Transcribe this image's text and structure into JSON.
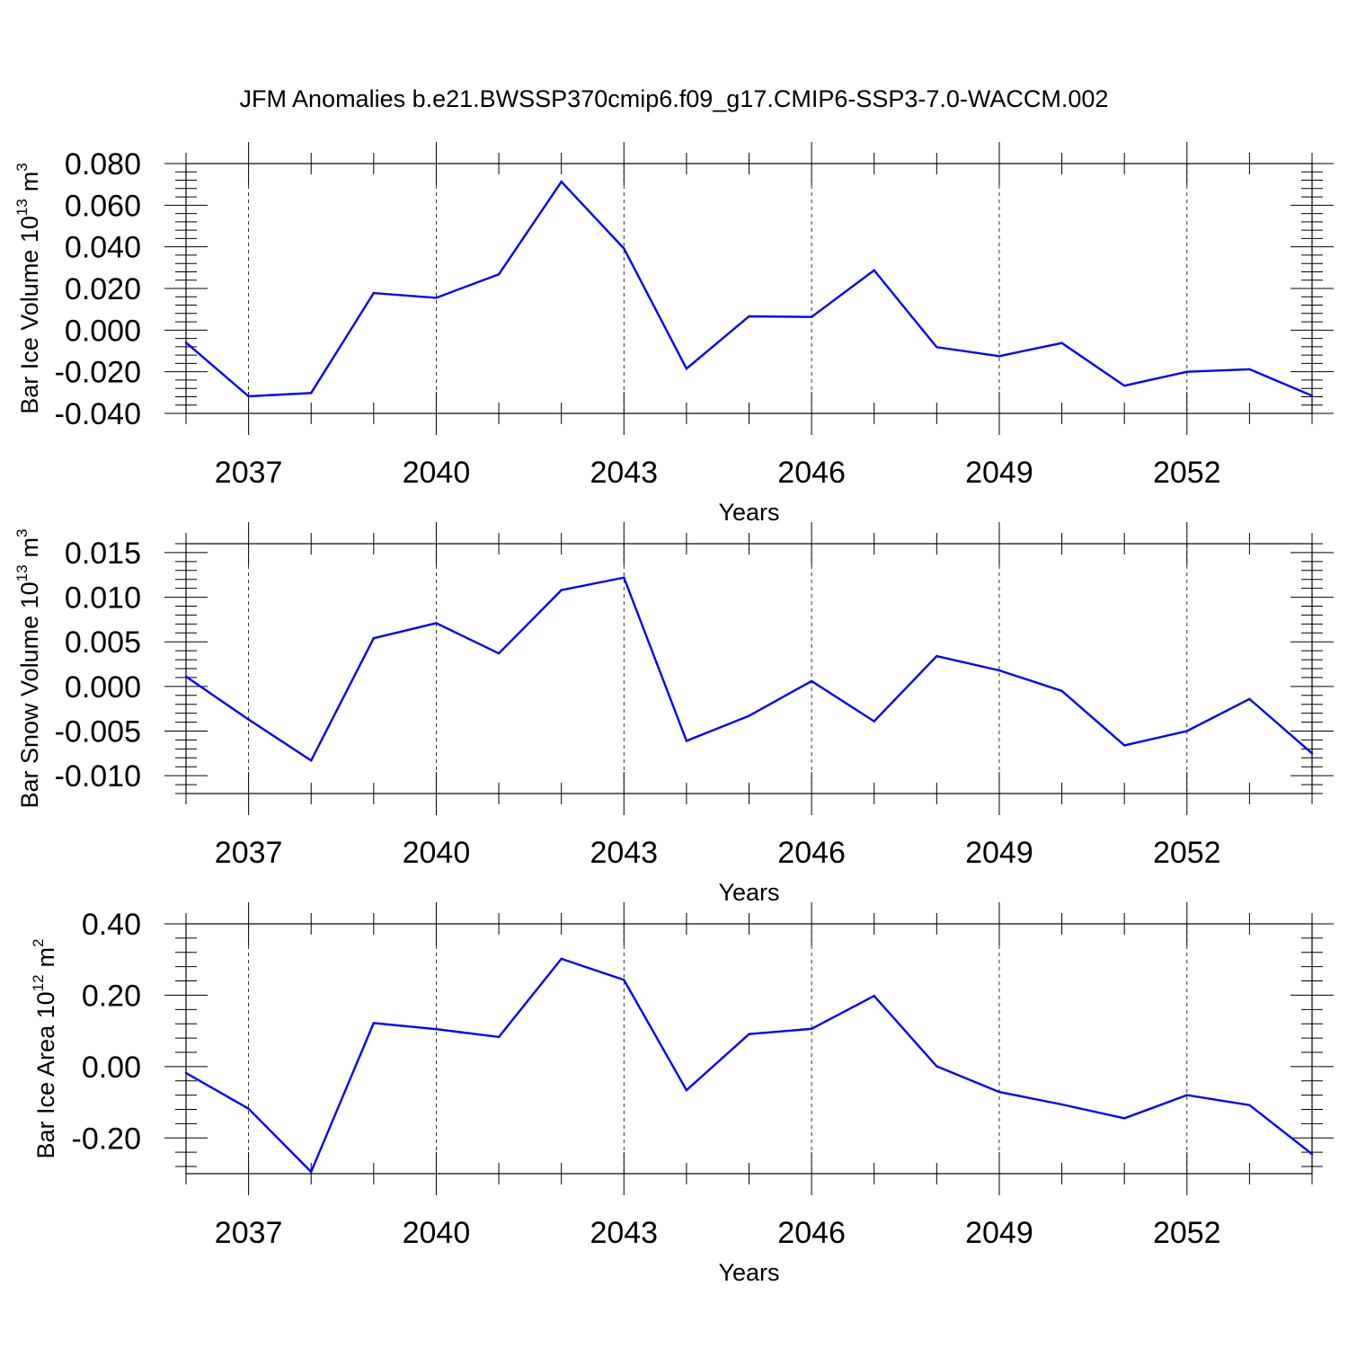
{
  "title": "JFM Anomalies b.e21.BWSSP370cmip6.f09_g17.CMIP6-SSP3-7.0-WACCM.002",
  "line_color": "#0000ff",
  "chart_data": [
    {
      "type": "line",
      "xlabel": "Years",
      "ylabel": "Bar Ice Volume 10",
      "ylabel_sup": "13",
      "ylabel_unit": "m",
      "ylabel_unit_sup": "3",
      "xlim": [
        2036,
        2054
      ],
      "ylim": [
        -0.04,
        0.08
      ],
      "grid": "vertical-dashed-at-major-x-ticks",
      "x_ticks": [
        2037,
        2040,
        2043,
        2046,
        2049,
        2052
      ],
      "x_tick_labels": [
        "2037",
        "2040",
        "2043",
        "2046",
        "2049",
        "2052"
      ],
      "y_ticks": [
        -0.04,
        -0.02,
        0.0,
        0.02,
        0.04,
        0.06,
        0.08
      ],
      "y_tick_labels": [
        "-0.040",
        "-0.020",
        "0.000",
        "0.020",
        "0.040",
        "0.060",
        "0.080"
      ],
      "x": [
        2036,
        2037,
        2038,
        2039,
        2040,
        2041,
        2042,
        2043,
        2044,
        2045,
        2046,
        2047,
        2048,
        2049,
        2050,
        2051,
        2052,
        2053,
        2054
      ],
      "values": [
        -0.006,
        -0.0318,
        -0.0302,
        0.0178,
        0.0155,
        0.0268,
        0.0713,
        0.0392,
        -0.0185,
        0.0066,
        0.0063,
        0.0287,
        -0.0082,
        -0.0125,
        -0.0062,
        -0.0267,
        -0.02,
        -0.0188,
        -0.0315
      ]
    },
    {
      "type": "line",
      "xlabel": "Years",
      "ylabel": "Bar Snow Volume 10",
      "ylabel_sup": "13",
      "ylabel_unit": "m",
      "ylabel_unit_sup": "3",
      "xlim": [
        2036,
        2054
      ],
      "ylim": [
        -0.012,
        0.016
      ],
      "grid": "vertical-dashed-at-major-x-ticks",
      "x_ticks": [
        2037,
        2040,
        2043,
        2046,
        2049,
        2052
      ],
      "x_tick_labels": [
        "2037",
        "2040",
        "2043",
        "2046",
        "2049",
        "2052"
      ],
      "y_ticks": [
        -0.01,
        -0.005,
        0.0,
        0.005,
        0.01,
        0.015
      ],
      "y_tick_labels": [
        "-0.010",
        "-0.005",
        "0.000",
        "0.005",
        "0.010",
        "0.015"
      ],
      "x": [
        2036,
        2037,
        2038,
        2039,
        2040,
        2041,
        2042,
        2043,
        2044,
        2045,
        2046,
        2047,
        2048,
        2049,
        2050,
        2051,
        2052,
        2053,
        2054
      ],
      "values": [
        0.0011,
        -0.0037,
        -0.0083,
        0.0054,
        0.0071,
        0.0037,
        0.0108,
        0.0122,
        -0.0061,
        -0.0033,
        0.0006,
        -0.0039,
        0.0034,
        0.0018,
        -0.0005,
        -0.0066,
        -0.005,
        -0.0014,
        -0.0075
      ]
    },
    {
      "type": "line",
      "xlabel": "Years",
      "ylabel": "Bar Ice Area 10",
      "ylabel_sup": "12",
      "ylabel_unit": "m",
      "ylabel_unit_sup": "2",
      "xlim": [
        2036,
        2054
      ],
      "ylim": [
        -0.3,
        0.4
      ],
      "grid": "vertical-dashed-at-major-x-ticks",
      "x_ticks": [
        2037,
        2040,
        2043,
        2046,
        2049,
        2052
      ],
      "x_tick_labels": [
        "2037",
        "2040",
        "2043",
        "2046",
        "2049",
        "2052"
      ],
      "y_ticks": [
        -0.2,
        0.0,
        0.2,
        0.4
      ],
      "y_tick_labels": [
        "-0.20",
        "0.00",
        "0.20",
        "0.40"
      ],
      "x": [
        2036,
        2037,
        2038,
        2039,
        2040,
        2041,
        2042,
        2043,
        2044,
        2045,
        2046,
        2047,
        2048,
        2049,
        2050,
        2051,
        2052,
        2053,
        2054
      ],
      "values": [
        -0.018,
        -0.118,
        -0.295,
        0.122,
        0.105,
        0.083,
        0.302,
        0.243,
        -0.066,
        0.091,
        0.106,
        0.198,
        0.001,
        -0.071,
        -0.106,
        -0.145,
        -0.08,
        -0.108,
        -0.245
      ]
    }
  ]
}
